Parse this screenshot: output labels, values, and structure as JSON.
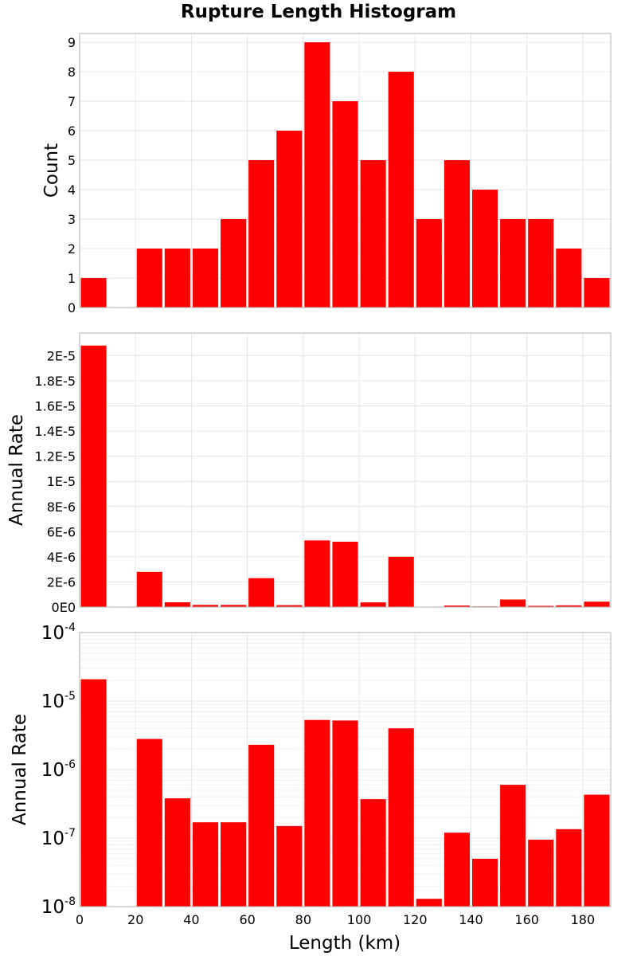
{
  "colors": {
    "bar": "#ff0000",
    "grid": "#e6e6e6",
    "grid_minor": "#f0f0f0",
    "frame": "#b0b0b0"
  },
  "chart_data": {
    "title": "Rupture Length Histogram",
    "xlabel": "Length (km)",
    "xlim": [
      0,
      190
    ],
    "bin_width": 10,
    "x_ticks": [
      0,
      20,
      40,
      60,
      80,
      100,
      120,
      140,
      160,
      180
    ],
    "x_tick_labels": [
      "0",
      "20",
      "40",
      "60",
      "80",
      "100",
      "120",
      "140",
      "160",
      "180"
    ],
    "bin_starts": [
      0,
      10,
      20,
      30,
      40,
      50,
      60,
      70,
      80,
      90,
      100,
      110,
      120,
      130,
      140,
      150,
      160,
      170,
      180
    ],
    "panels": [
      {
        "type": "bar",
        "ylabel": "Count",
        "scale": "linear",
        "ylim": [
          0,
          9.3
        ],
        "y_ticks": [
          0,
          1,
          2,
          3,
          4,
          5,
          6,
          7,
          8,
          9
        ],
        "y_tick_labels": [
          "0",
          "1",
          "2",
          "3",
          "4",
          "5",
          "6",
          "7",
          "8",
          "9"
        ],
        "values": [
          1,
          0,
          2,
          2,
          2,
          3,
          5,
          6,
          9,
          7,
          5,
          8,
          3,
          5,
          4,
          3,
          3,
          2,
          1
        ]
      },
      {
        "type": "bar",
        "ylabel": "Annual Rate",
        "scale": "linear",
        "ylim": [
          0,
          2.18e-05
        ],
        "y_ticks": [
          0,
          2e-06,
          4e-06,
          6e-06,
          8e-06,
          1e-05,
          1.2e-05,
          1.4e-05,
          1.6e-05,
          1.8e-05,
          2e-05
        ],
        "y_tick_labels": [
          "0E0",
          "2E-6",
          "4E-6",
          "6E-6",
          "8E-6",
          "1E-5",
          "1.2E-5",
          "1.4E-5",
          "1.6E-5",
          "1.8E-5",
          "2E-5"
        ],
        "values": [
          2.08e-05,
          0,
          2.8e-06,
          3.8e-07,
          1.7e-07,
          1.7e-07,
          2.3e-06,
          1.5e-07,
          5.3e-06,
          5.2e-06,
          3.7e-07,
          4e-06,
          1.3e-08,
          1.2e-07,
          5e-08,
          6e-07,
          9.5e-08,
          1.35e-07,
          4.3e-07
        ]
      },
      {
        "type": "bar",
        "ylabel": "Annual Rate",
        "scale": "log",
        "ylim": [
          1e-08,
          0.0001
        ],
        "y_ticks": [
          1e-08,
          1e-07,
          1e-06,
          1e-05,
          0.0001
        ],
        "y_tick_bases": [
          "10",
          "10",
          "10",
          "10",
          "10"
        ],
        "y_tick_exponents": [
          "-8",
          "-7",
          "-6",
          "-5",
          "-4"
        ],
        "values": [
          2.08e-05,
          0,
          2.8e-06,
          3.8e-07,
          1.7e-07,
          1.7e-07,
          2.3e-06,
          1.5e-07,
          5.3e-06,
          5.2e-06,
          3.7e-07,
          4e-06,
          1.3e-08,
          1.2e-07,
          5e-08,
          6e-07,
          9.5e-08,
          1.35e-07,
          4.3e-07
        ]
      }
    ]
  }
}
